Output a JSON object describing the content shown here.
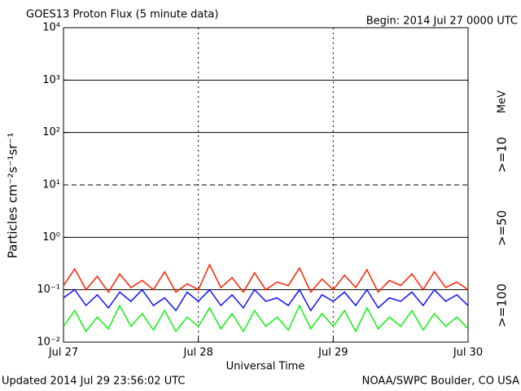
{
  "chart_data": {
    "type": "line",
    "title": "GOES13 Proton Flux (5 minute data)",
    "subtitle": "Begin: 2014 Jul 27 0000 UTC",
    "y_label": "Particles cm⁻²s⁻¹sr⁻¹",
    "x_label": "Universal Time",
    "units_label": "MeV",
    "footer_left": "Updated 2014 Jul 29 23:56:02 UTC",
    "footer_right": "NOAA/SWPC Boulder, CO USA",
    "log_y": true,
    "grid": true,
    "dashed_y": [
      10
    ],
    "ylim": [
      0.01,
      10000
    ],
    "yticks": [
      {
        "value": 0.01,
        "label": "10⁻²"
      },
      {
        "value": 0.1,
        "label": "10⁻¹"
      },
      {
        "value": 1,
        "label": "10⁰"
      },
      {
        "value": 10,
        "label": "10¹"
      },
      {
        "value": 100,
        "label": "10²"
      },
      {
        "value": 1000,
        "label": "10³"
      },
      {
        "value": 10000,
        "label": "10⁴"
      }
    ],
    "xlim": [
      "2014-07-27T00:00",
      "2014-07-30T00:00"
    ],
    "xticks": [
      {
        "value": "2014-07-27T00:00",
        "label": "Jul 27"
      },
      {
        "value": "2014-07-28T00:00",
        "label": "Jul 28"
      },
      {
        "value": "2014-07-29T00:00",
        "label": "Jul 29"
      },
      {
        "value": "2014-07-30T00:00",
        "label": "Jul 30"
      }
    ],
    "x": [
      "2014-07-27T00:00",
      "2014-07-27T02:00",
      "2014-07-27T04:00",
      "2014-07-27T06:00",
      "2014-07-27T08:00",
      "2014-07-27T10:00",
      "2014-07-27T12:00",
      "2014-07-27T14:00",
      "2014-07-27T16:00",
      "2014-07-27T18:00",
      "2014-07-27T20:00",
      "2014-07-27T22:00",
      "2014-07-28T00:00",
      "2014-07-28T02:00",
      "2014-07-28T04:00",
      "2014-07-28T06:00",
      "2014-07-28T08:00",
      "2014-07-28T10:00",
      "2014-07-28T12:00",
      "2014-07-28T14:00",
      "2014-07-28T16:00",
      "2014-07-28T18:00",
      "2014-07-28T20:00",
      "2014-07-28T22:00",
      "2014-07-29T00:00",
      "2014-07-29T02:00",
      "2014-07-29T04:00",
      "2014-07-29T06:00",
      "2014-07-29T08:00",
      "2014-07-29T10:00",
      "2014-07-29T12:00",
      "2014-07-29T14:00",
      "2014-07-29T16:00",
      "2014-07-29T18:00",
      "2014-07-29T20:00",
      "2014-07-29T22:00",
      "2014-07-30T00:00"
    ],
    "series": [
      {
        "name": ">=10",
        "color": "#ff2000",
        "values": [
          0.12,
          0.25,
          0.1,
          0.18,
          0.09,
          0.2,
          0.11,
          0.15,
          0.1,
          0.22,
          0.09,
          0.13,
          0.1,
          0.3,
          0.11,
          0.17,
          0.09,
          0.21,
          0.1,
          0.14,
          0.12,
          0.26,
          0.09,
          0.16,
          0.1,
          0.19,
          0.11,
          0.24,
          0.09,
          0.15,
          0.12,
          0.2,
          0.1,
          0.22,
          0.11,
          0.14,
          0.1
        ]
      },
      {
        "name": ">=50",
        "color": "#1010ff",
        "values": [
          0.07,
          0.1,
          0.05,
          0.08,
          0.045,
          0.09,
          0.06,
          0.1,
          0.05,
          0.07,
          0.04,
          0.09,
          0.06,
          0.1,
          0.05,
          0.08,
          0.045,
          0.1,
          0.06,
          0.07,
          0.05,
          0.1,
          0.04,
          0.08,
          0.06,
          0.09,
          0.05,
          0.1,
          0.045,
          0.07,
          0.06,
          0.09,
          0.05,
          0.1,
          0.06,
          0.08,
          0.05
        ]
      },
      {
        "name": ">=100",
        "color": "#10f010",
        "values": [
          0.02,
          0.04,
          0.016,
          0.03,
          0.018,
          0.05,
          0.02,
          0.035,
          0.017,
          0.04,
          0.016,
          0.03,
          0.02,
          0.045,
          0.018,
          0.035,
          0.016,
          0.04,
          0.02,
          0.03,
          0.017,
          0.05,
          0.018,
          0.035,
          0.02,
          0.04,
          0.016,
          0.045,
          0.018,
          0.03,
          0.02,
          0.04,
          0.017,
          0.035,
          0.02,
          0.03,
          0.018
        ]
      }
    ]
  }
}
